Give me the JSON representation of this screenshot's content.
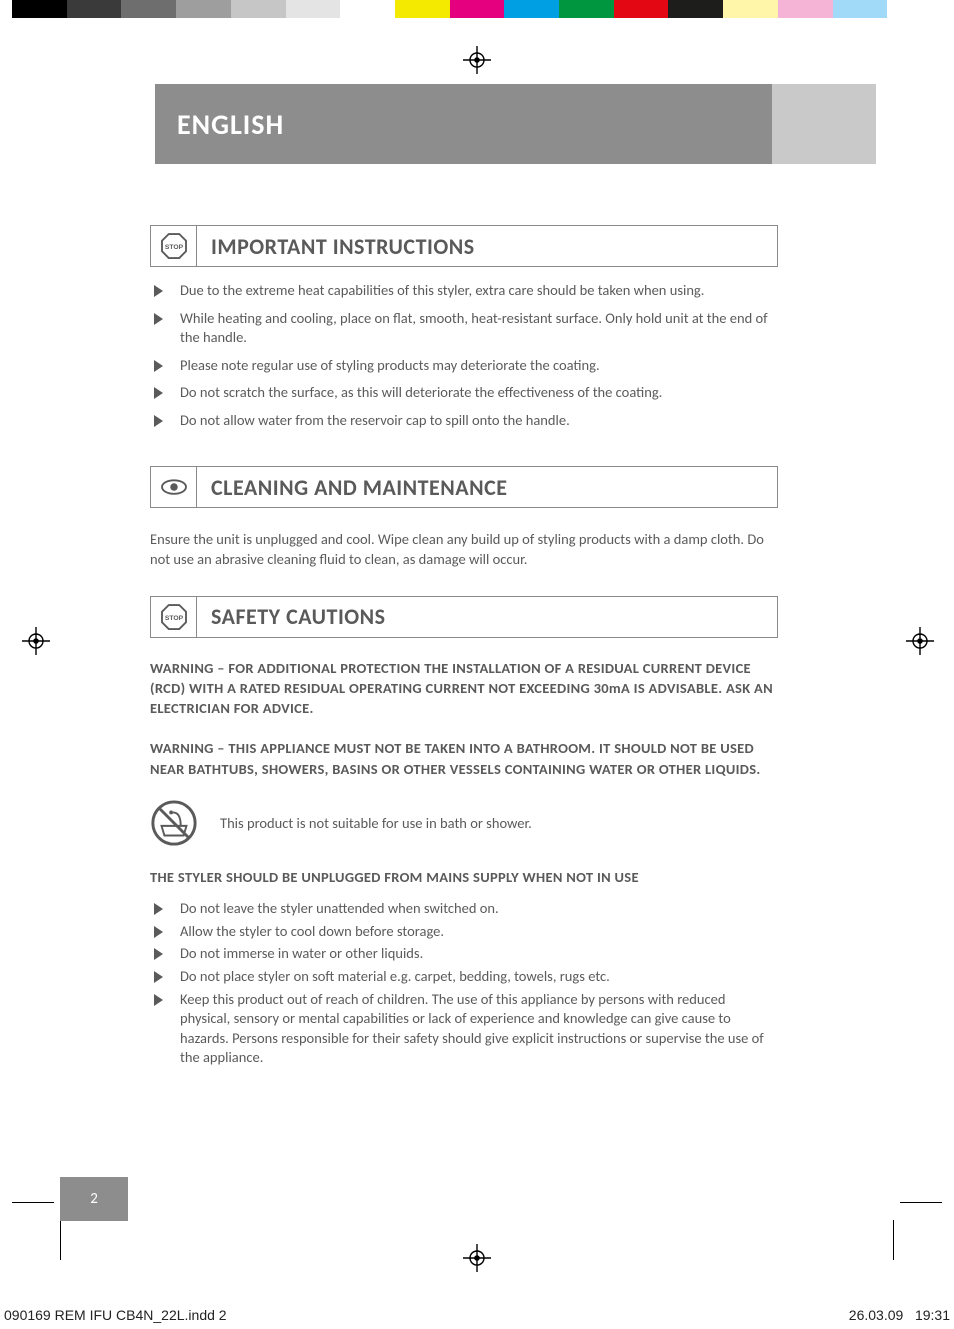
{
  "colorbar": [
    "#000000",
    "#3a3a3a",
    "#6e6e6e",
    "#9e9e9e",
    "#c6c6c6",
    "#e4e4e4",
    "#ffffff",
    "#f4ea00",
    "#e4007f",
    "#009fe3",
    "#009640",
    "#e30613",
    "#1d1d1b",
    "#fff6a9",
    "#f5b3d6",
    "#a1daf8",
    "#ffffff"
  ],
  "language_label": "ENGLISH",
  "sections": {
    "important": {
      "title": "IMPORTANT INSTRUCTIONS",
      "icon": "stop",
      "bullets": [
        "Due to the extreme heat capabilities of this styler, extra care should be taken when using.",
        "While heating and cooling, place on flat, smooth, heat-resistant surface. Only hold unit at the end of the handle.",
        "Please note regular use of styling products may deteriorate the coating.",
        "Do not scratch the surface, as this will deteriorate the effectiveness of the coating.",
        "Do not allow water from the reservoir cap to spill onto the handle."
      ]
    },
    "cleaning": {
      "title": "CLEANING AND MAINTENANCE",
      "icon": "eye",
      "paragraph": "Ensure the unit is unplugged and cool. Wipe clean any build up of styling products with a damp cloth. Do not use an abrasive cleaning fluid to clean, as damage will occur."
    },
    "safety": {
      "title": "SAFETY CAUTIONS",
      "icon": "stop",
      "warnings": [
        "WARNING – FOR ADDITIONAL PROTECTION THE INSTALLATION OF A RESIDUAL CURRENT DEVICE (RCD) WITH A RATED RESIDUAL OPERATING CURRENT NOT EXCEEDING 30mA IS ADVISABLE. ASK AN ELECTRICIAN FOR ADVICE.",
        "WARNING – THIS APPLIANCE MUST NOT BE TAKEN INTO A BATHROOM. IT SHOULD NOT BE USED NEAR BATHTUBS, SHOWERS, BASINS OR OTHER VESSELS CONTAINING WATER OR OTHER LIQUIDS."
      ],
      "bath_notice": "This product is not suitable for use in bath or shower.",
      "unplug_heading": "THE STYLER SHOULD BE UNPLUGGED FROM MAINS SUPPLY WHEN NOT IN USE",
      "bullets": [
        "Do not leave the styler unattended when switched on.",
        "Allow the styler to cool down before storage.",
        "Do not immerse in water or other liquids.",
        "Do not place styler on soft material e.g. carpet, bedding, towels, rugs etc.",
        "Keep this product out of reach of children. The use of this appliance by persons with reduced physical, sensory or mental capabilities or lack of experience and knowledge can give cause to hazards. Persons responsible for their safety should give explicit instructions or supervise the use of the appliance."
      ]
    }
  },
  "page_number": "2",
  "slug_left": "090169 REM IFU CB4N_22L.indd   2",
  "slug_date": "26.03.09",
  "slug_time": "19:31",
  "colors": {
    "text": "#5a5a5a",
    "header_bg": "#8d8d8d",
    "tab_bg": "#c9c9c9",
    "rule": "#8a8a8a"
  }
}
